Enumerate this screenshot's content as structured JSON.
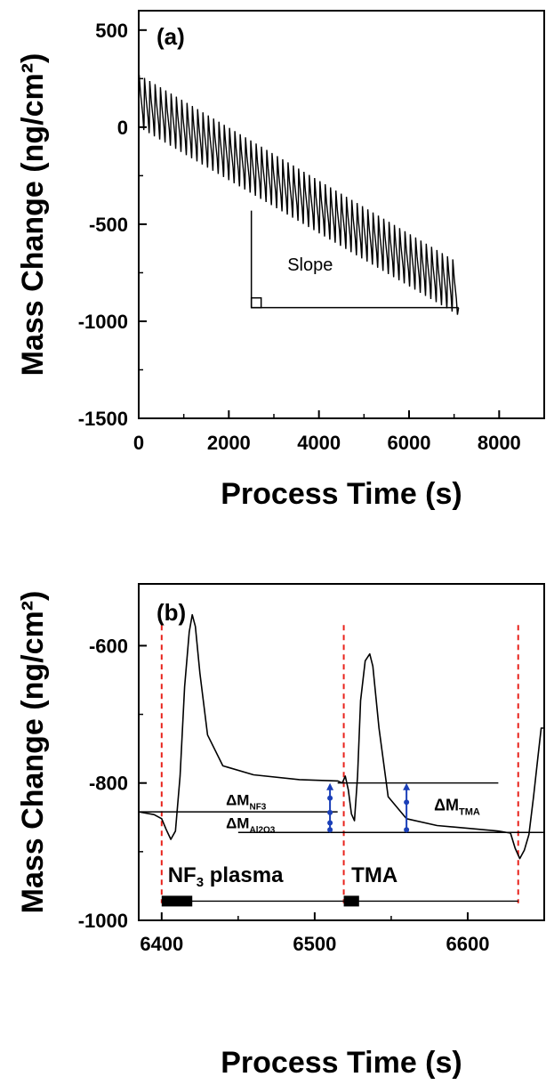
{
  "chart_data": [
    {
      "id": "a",
      "type": "line",
      "panel_label": "(a)",
      "xlabel": "Process Time (s)",
      "ylabel": "Mass Change (ng/cm²)",
      "xlim": [
        0,
        9000
      ],
      "ylim": [
        -1500,
        600
      ],
      "xticks": [
        0,
        2000,
        4000,
        6000,
        8000
      ],
      "yticks": [
        500,
        0,
        -500,
        -1000,
        -1500
      ],
      "series": [
        {
          "x": [
            0,
            7100
          ],
          "y": [
            120,
            -850
          ],
          "cycles": 60,
          "cycle_period_s": 118,
          "oscillation_high_ng_cm2": 150,
          "oscillation_low_ng_cm2": -150
        }
      ],
      "annotations": [
        {
          "text": "Slope",
          "x": 3300,
          "y": -740
        }
      ],
      "slope_triangle": {
        "x_start": 2500,
        "x_end": 7100,
        "y_base": -930,
        "y_top": -430
      }
    },
    {
      "id": "b",
      "type": "line",
      "panel_label": "(b)",
      "xlabel": "Process Time (s)",
      "ylabel": "Mass Change (ng/cm²)",
      "xlim": [
        6385,
        6650
      ],
      "ylim": [
        -1000,
        -510
      ],
      "xticks": [
        6400,
        6500,
        6600
      ],
      "yticks": [
        -600,
        -800,
        -1000
      ],
      "series": [
        {
          "x": [
            6385,
            6395,
            6400,
            6403,
            6406,
            6409,
            6412,
            6415,
            6418,
            6420,
            6422,
            6425,
            6430,
            6440,
            6460,
            6490,
            6515,
            6518,
            6520,
            6522,
            6524,
            6526,
            6528,
            6530,
            6533,
            6536,
            6538,
            6542,
            6548,
            6560,
            6580,
            6600,
            6620,
            6628,
            6631,
            6634,
            6637,
            6640,
            6643,
            6646,
            6648,
            6650
          ],
          "y": [
            -842,
            -846,
            -852,
            -868,
            -882,
            -870,
            -790,
            -660,
            -580,
            -555,
            -572,
            -640,
            -730,
            -775,
            -788,
            -795,
            -797,
            -800,
            -790,
            -810,
            -845,
            -855,
            -790,
            -680,
            -622,
            -612,
            -630,
            -720,
            -820,
            -852,
            -862,
            -866,
            -870,
            -873,
            -895,
            -910,
            -898,
            -875,
            -820,
            -760,
            -720,
            -720
          ]
        }
      ],
      "reference_lines": [
        {
          "x": [
            6385,
            6515
          ],
          "y": -842
        },
        {
          "x": [
            6515,
            6620
          ],
          "y": -800
        },
        {
          "x": [
            6450,
            6650
          ],
          "y": -872
        }
      ],
      "red_dashed_lines_x": [
        6400,
        6519,
        6633
      ],
      "arrows": [
        {
          "x": 6510,
          "y_from": -872,
          "y_to": -800
        },
        {
          "x": 6560,
          "y_from": -872,
          "y_to": -800
        }
      ],
      "timeline": {
        "y": -972,
        "x_start": 6400,
        "x_end": 6633,
        "blocks": [
          {
            "x": [
              6400,
              6420
            ]
          },
          {
            "x": [
              6519,
              6529
            ]
          }
        ]
      },
      "labels": {
        "dm_nf3": {
          "main": "ΔM",
          "sub": "NF3"
        },
        "dm_al2o3": {
          "main": "ΔM",
          "sub": "Al2O3"
        },
        "dm_tma": {
          "main": "ΔM",
          "sub": "TMA"
        },
        "nf3_plasma": {
          "main": "NF",
          "sub": "3",
          "rest": " plasma"
        },
        "tma": "TMA"
      }
    }
  ]
}
